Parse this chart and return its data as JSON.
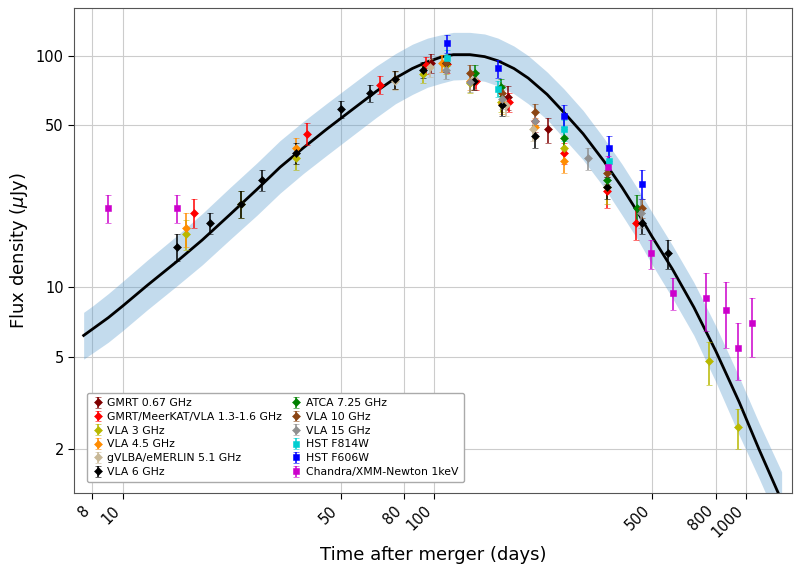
{
  "xlabel": "Time after merger (days)",
  "ylabel": "Flux density ($\\mu$Jy)",
  "xlim": [
    7.0,
    1400.0
  ],
  "ylim": [
    1.3,
    160.0
  ],
  "xticks": [
    8,
    10,
    50,
    80,
    100,
    500,
    800,
    1000
  ],
  "yticks": [
    2,
    5,
    10,
    50,
    100
  ],
  "bg_color": "#ffffff",
  "grid_color": "#cccccc",
  "model_color": "#000000",
  "band_color": "#5599cc",
  "band_alpha": 0.35,
  "model_x": [
    7.5,
    8,
    9,
    10,
    12,
    15,
    18,
    22,
    27,
    32,
    38,
    45,
    55,
    65,
    75,
    85,
    95,
    105,
    115,
    130,
    145,
    160,
    180,
    200,
    230,
    260,
    300,
    350,
    400,
    450,
    500,
    580,
    680,
    800,
    950,
    1100,
    1300
  ],
  "model_y": [
    6.2,
    6.6,
    7.4,
    8.3,
    10.2,
    13.0,
    16.0,
    20.5,
    26.5,
    33.0,
    40.0,
    48.0,
    59.0,
    70.0,
    80.0,
    88.0,
    94.0,
    98.5,
    101.0,
    101.0,
    99.0,
    95.0,
    88.0,
    80.0,
    68.0,
    57.0,
    46.0,
    35.0,
    27.0,
    21.0,
    16.5,
    12.0,
    8.2,
    5.3,
    3.2,
    2.0,
    1.2
  ],
  "band_upper": [
    7.8,
    8.3,
    9.4,
    10.6,
    13.1,
    16.8,
    20.8,
    26.8,
    34.5,
    43.0,
    52.0,
    62.0,
    76.0,
    90.0,
    102.0,
    112.0,
    119.0,
    123.0,
    126.0,
    126.0,
    124.0,
    119.0,
    110.0,
    100.0,
    85.0,
    72.0,
    58.0,
    44.0,
    34.0,
    26.5,
    21.0,
    15.2,
    10.5,
    6.8,
    4.1,
    2.6,
    1.6
  ],
  "band_lower": [
    4.9,
    5.2,
    5.8,
    6.5,
    8.0,
    10.2,
    12.5,
    16.0,
    20.5,
    25.5,
    31.0,
    37.0,
    45.5,
    54.0,
    62.0,
    68.0,
    73.0,
    76.0,
    78.5,
    79.0,
    77.5,
    74.0,
    68.5,
    62.0,
    53.0,
    44.0,
    35.5,
    27.0,
    20.5,
    16.0,
    12.5,
    9.0,
    6.2,
    3.9,
    2.3,
    1.5,
    0.9
  ],
  "datasets": [
    {
      "label": "GMRT 0.67 GHz",
      "color": "#800000",
      "marker": "D",
      "ms": 4.5,
      "x": [
        97.5,
        172,
        232
      ],
      "y": [
        93,
        66,
        48
      ],
      "yerr_lo": [
        9,
        8,
        6
      ],
      "yerr_hi": [
        9,
        8,
        6
      ]
    },
    {
      "label": "GMRT/MeerKAT/VLA 1.3-1.6 GHz",
      "color": "#ff0000",
      "marker": "D",
      "ms": 4.5,
      "x": [
        17,
        39,
        67,
        94,
        110,
        136,
        173,
        210,
        260,
        358,
        442
      ],
      "y": [
        21,
        46,
        75,
        91,
        92,
        78,
        63,
        52,
        38,
        26,
        19
      ],
      "yerr_lo": [
        3,
        5,
        7,
        8,
        8,
        7,
        6,
        5,
        4,
        4,
        3
      ],
      "yerr_hi": [
        3,
        5,
        7,
        8,
        8,
        7,
        6,
        5,
        4,
        4,
        3
      ]
    },
    {
      "label": "VLA 3 GHz",
      "color": "#b8b800",
      "marker": "D",
      "ms": 4.5,
      "x": [
        16,
        24,
        36,
        92,
        109,
        130,
        163,
        260,
        358,
        762,
        942
      ],
      "y": [
        17,
        23,
        36,
        83,
        91,
        76,
        63,
        40,
        27,
        4.8,
        2.5
      ],
      "yerr_lo": [
        2.5,
        3,
        4,
        7,
        8,
        7,
        6,
        5,
        4,
        1.0,
        0.5
      ],
      "yerr_hi": [
        2.5,
        3,
        4,
        7,
        8,
        7,
        6,
        5,
        4,
        1.0,
        0.5
      ]
    },
    {
      "label": "VLA 4.5 GHz",
      "color": "#ff8c00",
      "marker": "D",
      "ms": 4.5,
      "x": [
        16,
        36,
        75,
        106,
        130,
        165,
        210,
        260
      ],
      "y": [
        18,
        40,
        79,
        93,
        78,
        62,
        49,
        35
      ],
      "yerr_lo": [
        3,
        4,
        7,
        8,
        7,
        6,
        5,
        4
      ],
      "yerr_hi": [
        3,
        4,
        7,
        8,
        7,
        6,
        5,
        4
      ]
    },
    {
      "label": "gVLBA/eMERLIN 5.1 GHz",
      "color": "#c8b896",
      "marker": "D",
      "ms": 4.5,
      "x": [
        75,
        97,
        134,
        170,
        207
      ],
      "y": [
        78,
        89,
        79,
        61,
        48
      ],
      "yerr_lo": [
        7,
        8,
        7,
        6,
        5
      ],
      "yerr_hi": [
        7,
        8,
        7,
        6,
        5
      ]
    },
    {
      "label": "VLA 6 GHz",
      "color": "#000000",
      "marker": "D",
      "ms": 4.5,
      "x": [
        15,
        19,
        24,
        28,
        36,
        50,
        62,
        75,
        92,
        109,
        134,
        165,
        210,
        358,
        462,
        562
      ],
      "y": [
        15,
        19,
        23,
        29,
        38,
        59,
        69,
        79,
        87,
        93,
        78,
        61,
        45,
        27,
        19,
        14
      ],
      "yerr_lo": [
        2,
        2,
        3,
        3,
        4,
        5,
        6,
        7,
        7,
        8,
        7,
        6,
        5,
        3,
        2,
        2
      ],
      "yerr_hi": [
        2,
        2,
        3,
        3,
        4,
        5,
        6,
        7,
        7,
        8,
        7,
        6,
        5,
        3,
        2,
        2
      ]
    },
    {
      "label": "ATCA 7.25 GHz",
      "color": "#008000",
      "marker": "D",
      "ms": 4.5,
      "x": [
        135,
        163,
        261,
        357,
        448
      ],
      "y": [
        84,
        73,
        44,
        29,
        22
      ],
      "yerr_lo": [
        7,
        6,
        4,
        3,
        3
      ],
      "yerr_hi": [
        7,
        6,
        4,
        3,
        3
      ]
    },
    {
      "label": "VLA 10 GHz",
      "color": "#8b4513",
      "marker": "D",
      "ms": 4.5,
      "x": [
        109,
        130,
        165,
        210,
        357,
        462
      ],
      "y": [
        93,
        84,
        69,
        57,
        31,
        22
      ],
      "yerr_lo": [
        8,
        7,
        6,
        5,
        3,
        2
      ],
      "yerr_hi": [
        8,
        7,
        6,
        5,
        3,
        2
      ]
    },
    {
      "label": "VLA 15 GHz",
      "color": "#909090",
      "marker": "D",
      "ms": 4.5,
      "x": [
        109,
        130,
        165,
        210,
        310,
        460
      ],
      "y": [
        87,
        77,
        65,
        52,
        36,
        21
      ],
      "yerr_lo": [
        8,
        7,
        6,
        5,
        4,
        3
      ],
      "yerr_hi": [
        8,
        7,
        6,
        5,
        4,
        3
      ]
    },
    {
      "label": "HST F814W",
      "color": "#00ced1",
      "marker": "s",
      "ms": 5,
      "x": [
        110,
        160,
        260,
        362
      ],
      "y": [
        98,
        72,
        48,
        35
      ],
      "yerr_lo": [
        8,
        6,
        5,
        4
      ],
      "yerr_hi": [
        8,
        6,
        5,
        4
      ]
    },
    {
      "label": "HST F606W",
      "color": "#0000ff",
      "marker": "s",
      "ms": 5,
      "x": [
        110,
        160,
        260,
        362,
        463
      ],
      "y": [
        113,
        88,
        55,
        40,
        28
      ],
      "yerr_lo": [
        10,
        8,
        6,
        5,
        4
      ],
      "yerr_hi": [
        10,
        8,
        6,
        5,
        4
      ]
    },
    {
      "label": "Chandra/XMM-Newton 1keV",
      "color": "#cc00cc",
      "marker": "s",
      "ms": 5,
      "x": [
        9,
        15,
        360,
        494,
        582,
        743,
        862,
        940,
        1042
      ],
      "y": [
        22,
        22,
        33,
        14,
        9.5,
        9.0,
        8.0,
        5.5,
        7.0
      ],
      "yerr_lo": [
        3,
        3,
        4,
        2,
        1.5,
        2.5,
        2.5,
        1.5,
        2.0
      ],
      "yerr_hi": [
        3,
        3,
        4,
        2,
        1.5,
        2.5,
        2.5,
        1.5,
        2.0
      ]
    }
  ]
}
